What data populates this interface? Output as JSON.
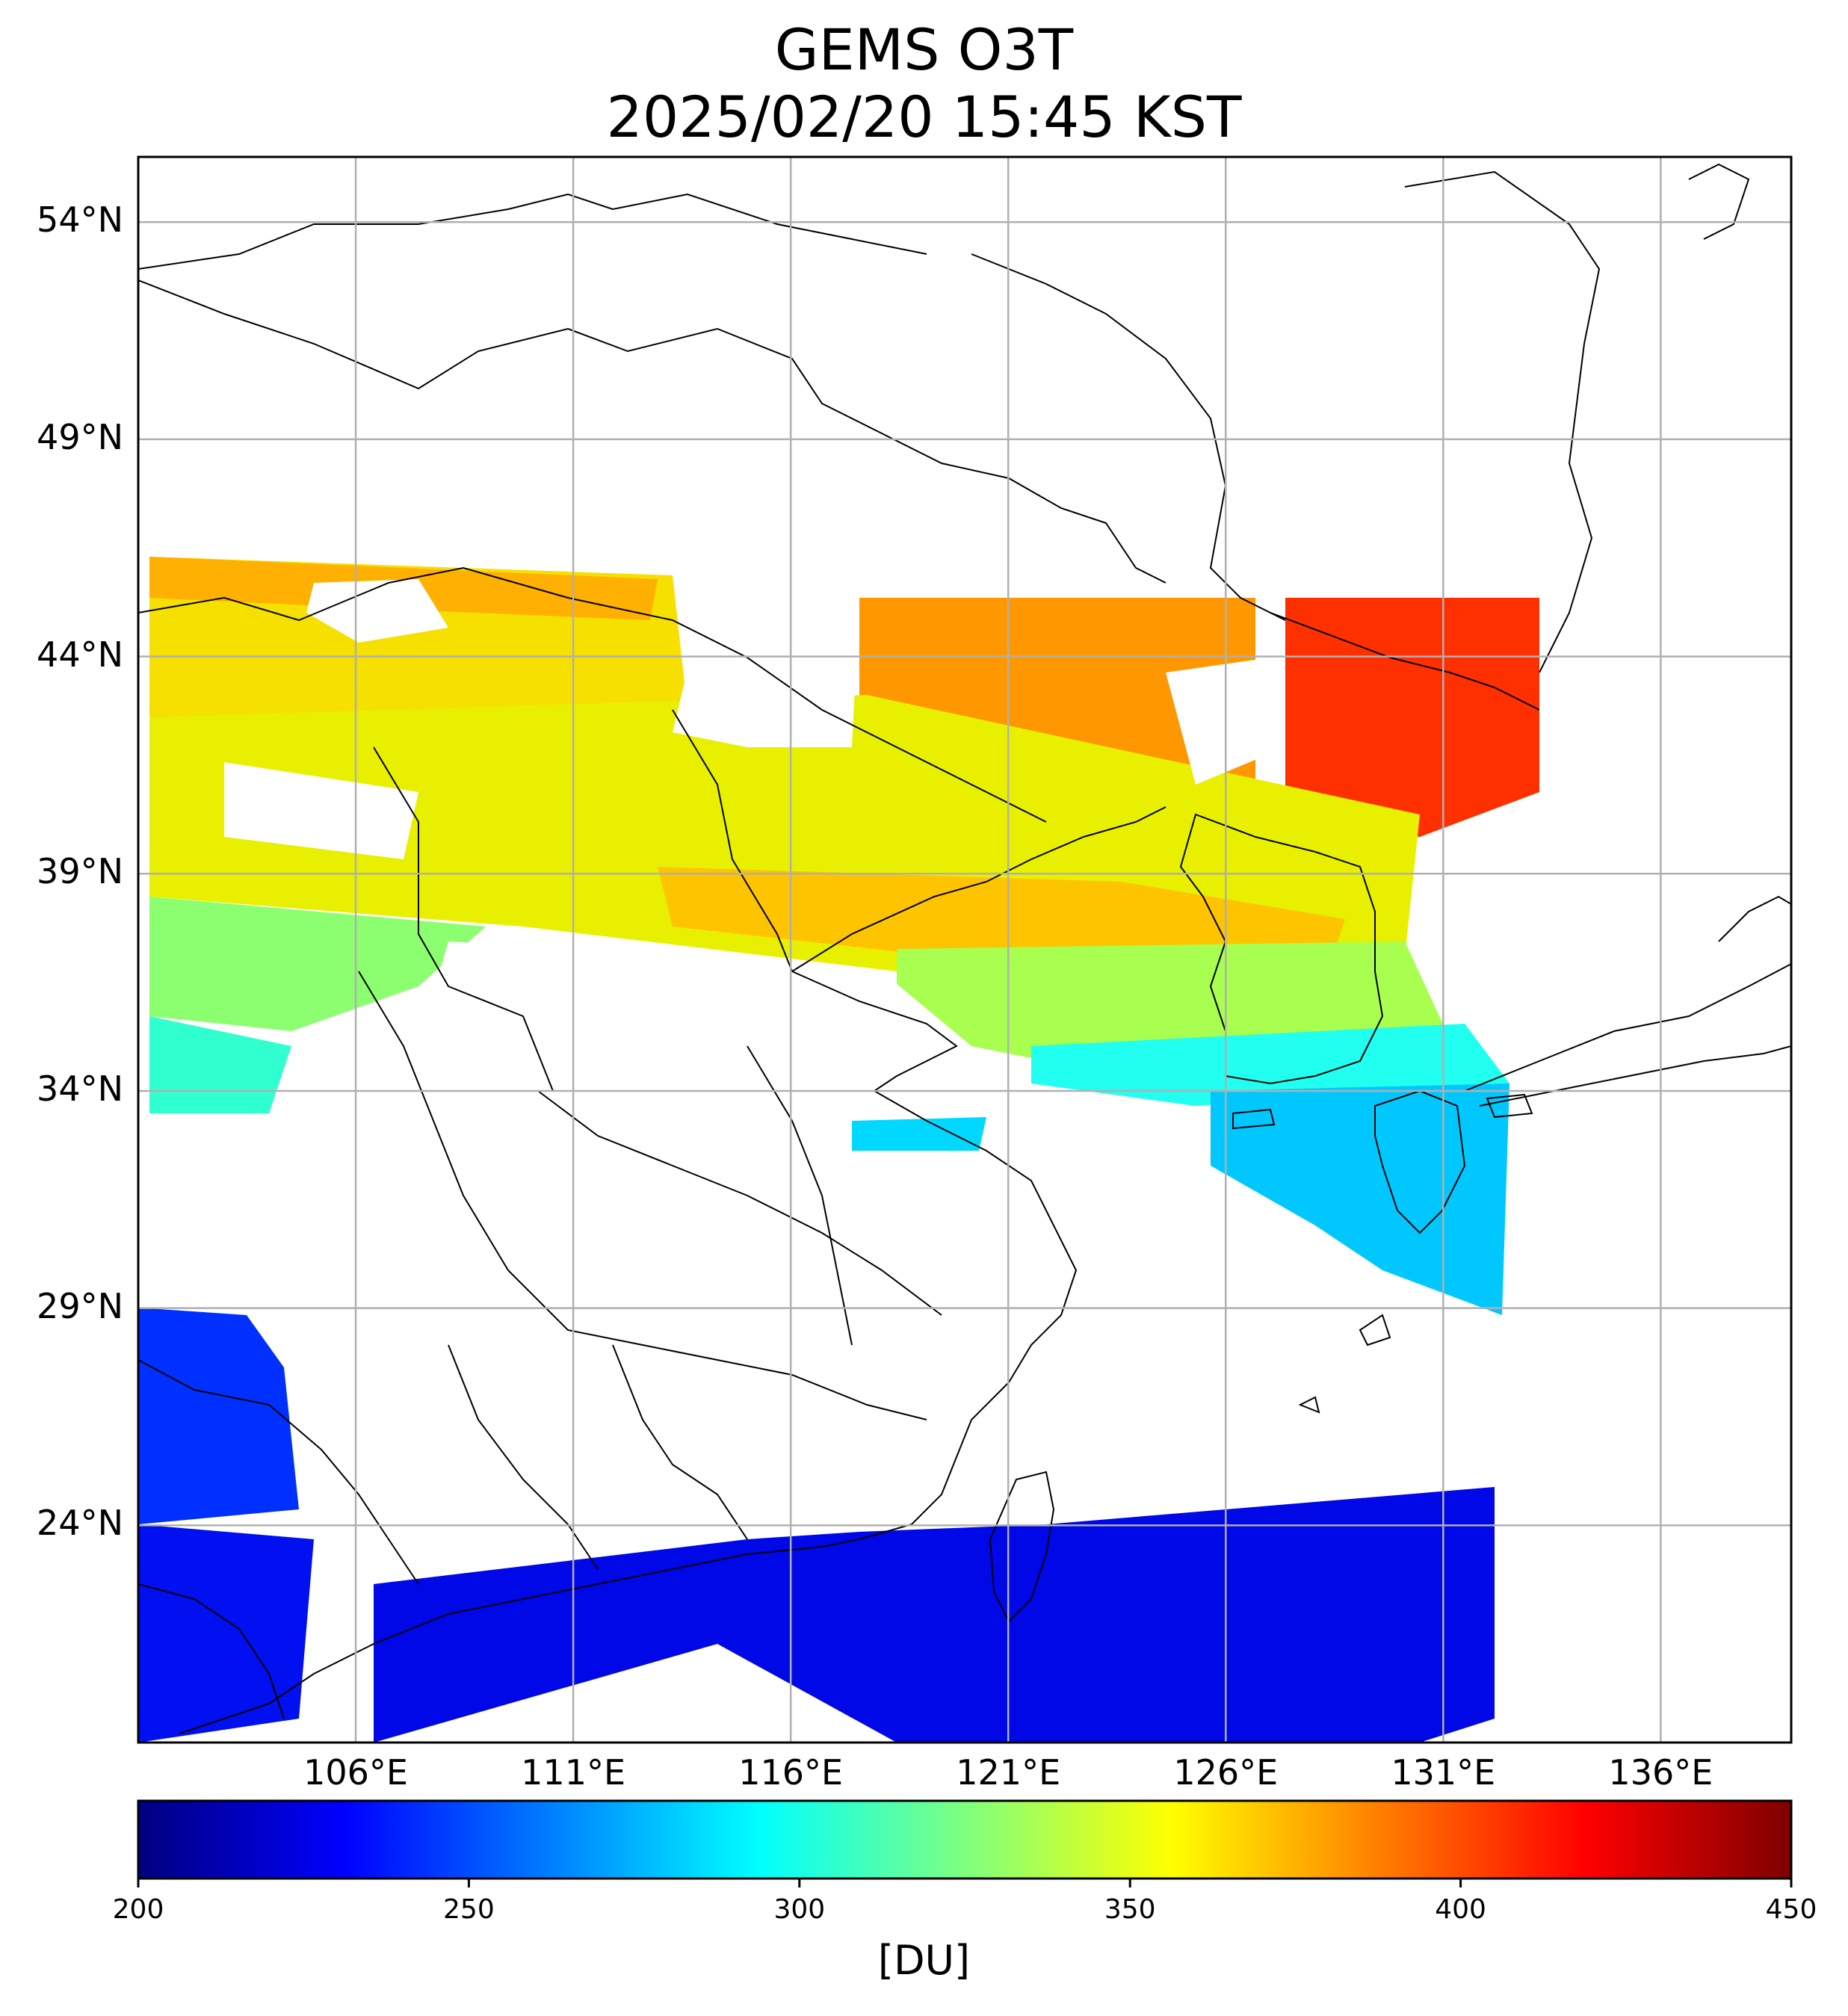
{
  "title": "GEMS O3T",
  "subtitle": "2025/02/20 15:45 KST",
  "lat_labels": [
    "54°N",
    "49°N",
    "44°N",
    "39°N",
    "34°N",
    "29°N",
    "24°N"
  ],
  "lon_labels": [
    "106°E",
    "111°E",
    "116°E",
    "121°E",
    "126°E",
    "131°E",
    "136°E"
  ],
  "colorbar": {
    "unit": "[DU]",
    "tick_labels": [
      "200",
      "250",
      "300",
      "350",
      "400",
      "450"
    ],
    "min": 200,
    "max": 450,
    "colormap": "jet",
    "colors": [
      "#00007f",
      "#0000ff",
      "#007fff",
      "#00ffff",
      "#7fff7f",
      "#ffff00",
      "#ff7f00",
      "#ff0000",
      "#7f0000"
    ]
  },
  "chart_data": {
    "type": "heatmap",
    "title": "GEMS O3T",
    "subtitle": "2025/02/20 15:45 KST",
    "x_ticks": [
      106,
      111,
      116,
      121,
      126,
      131,
      136
    ],
    "y_ticks": [
      54,
      49,
      44,
      39,
      34,
      29,
      24
    ],
    "xlim": [
      101,
      139
    ],
    "ylim": [
      19,
      55.5
    ],
    "value_range": [
      200,
      450
    ],
    "grid": true,
    "regions_approx": [
      {
        "lon": [
          101,
          116
        ],
        "lat": [
          42,
          46
        ],
        "value": 370
      },
      {
        "lon": [
          117,
          128
        ],
        "lat": [
          41,
          45.5
        ],
        "value": 385
      },
      {
        "lon": [
          128,
          134
        ],
        "lat": [
          41,
          45.5
        ],
        "value": 415
      },
      {
        "lon": [
          101,
          115
        ],
        "lat": [
          38,
          42
        ],
        "value": 350
      },
      {
        "lon": [
          115,
          130
        ],
        "lat": [
          37,
          41
        ],
        "value": 365
      },
      {
        "lon": [
          101,
          108
        ],
        "lat": [
          34,
          38
        ],
        "value": 320
      },
      {
        "lon": [
          119,
          132
        ],
        "lat": [
          34,
          37
        ],
        "value": 315
      },
      {
        "lon": [
          126,
          133
        ],
        "lat": [
          29,
          34
        ],
        "value": 280
      },
      {
        "lon": [
          101,
          105
        ],
        "lat": [
          24,
          29
        ],
        "value": 240
      },
      {
        "lon": [
          101,
          133
        ],
        "lat": [
          19,
          24
        ],
        "value": 235
      }
    ]
  }
}
